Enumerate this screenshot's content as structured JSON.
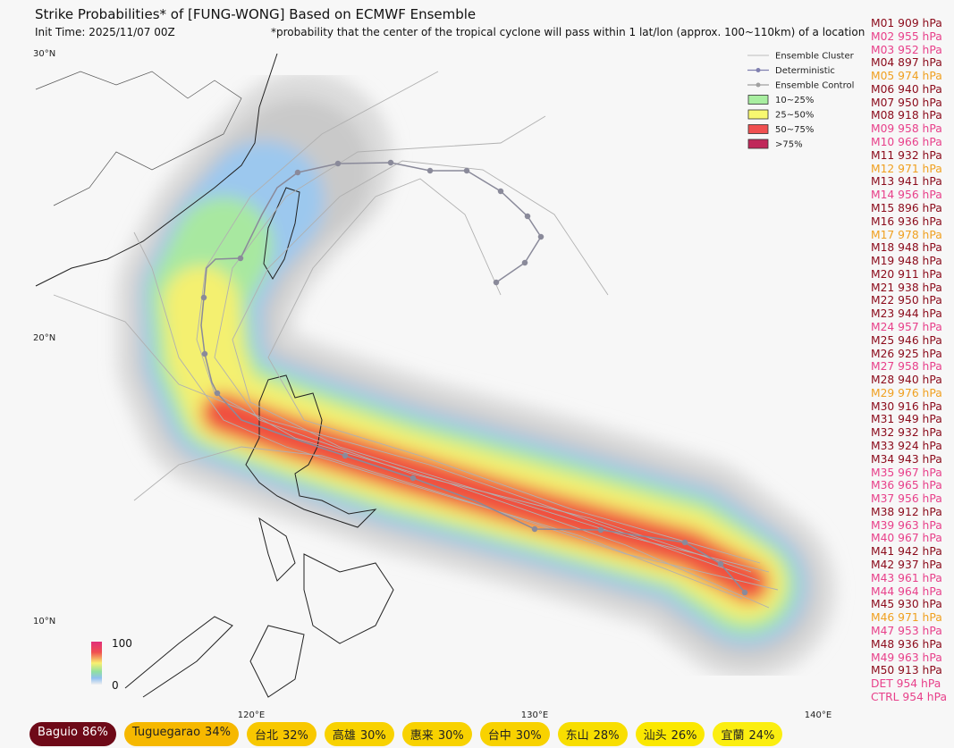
{
  "header": {
    "title": "Strike Probabilities* of [FUNG-WONG] Based on ECMWF Ensemble",
    "init_time": "Init Time: 2025/11/07 00Z",
    "footnote": "*probability that the center of the tropical cyclone will pass within 1 lat/lon (approx. 100~110km) of a location"
  },
  "map": {
    "lat_labels": [
      "30°N",
      "20°N",
      "10°N"
    ],
    "lon_labels": [
      "120°E",
      "130°E",
      "140°E"
    ]
  },
  "legend": {
    "lines": [
      {
        "label": "Ensemble Cluster",
        "color": "#c8c8c8"
      },
      {
        "label": "Deterministic",
        "color": "#8080b0"
      },
      {
        "label": "Ensemble Control",
        "color": "#a0a0a0"
      }
    ],
    "boxes": [
      {
        "label": "10~25%",
        "color": "#a8eea0"
      },
      {
        "label": "25~50%",
        "color": "#f8f870"
      },
      {
        "label": "50~75%",
        "color": "#f05050"
      },
      {
        "label": ">75%",
        "color": "#c0285a"
      }
    ]
  },
  "colorbar": {
    "max_label": "100",
    "min_label": "0"
  },
  "members": [
    {
      "text": "M01 909 hPa",
      "color": "#8b0a1a"
    },
    {
      "text": "M02 955 hPa",
      "color": "#e8408a"
    },
    {
      "text": "M03 952 hPa",
      "color": "#e8408a"
    },
    {
      "text": "M04 897 hPa",
      "color": "#8b0a1a"
    },
    {
      "text": "M05 974 hPa",
      "color": "#f0a020"
    },
    {
      "text": "M06 940 hPa",
      "color": "#8b0a1a"
    },
    {
      "text": "M07 950 hPa",
      "color": "#8b0a1a"
    },
    {
      "text": "M08 918 hPa",
      "color": "#8b0a1a"
    },
    {
      "text": "M09 958 hPa",
      "color": "#e8408a"
    },
    {
      "text": "M10 966 hPa",
      "color": "#e8408a"
    },
    {
      "text": "M11 932 hPa",
      "color": "#8b0a1a"
    },
    {
      "text": "M12 971 hPa",
      "color": "#f0a020"
    },
    {
      "text": "M13 941 hPa",
      "color": "#8b0a1a"
    },
    {
      "text": "M14 956 hPa",
      "color": "#e8408a"
    },
    {
      "text": "M15 896 hPa",
      "color": "#8b0a1a"
    },
    {
      "text": "M16 936 hPa",
      "color": "#8b0a1a"
    },
    {
      "text": "M17 978 hPa",
      "color": "#f0a020"
    },
    {
      "text": "M18 948 hPa",
      "color": "#8b0a1a"
    },
    {
      "text": "M19 948 hPa",
      "color": "#8b0a1a"
    },
    {
      "text": "M20 911 hPa",
      "color": "#8b0a1a"
    },
    {
      "text": "M21 938 hPa",
      "color": "#8b0a1a"
    },
    {
      "text": "M22 950 hPa",
      "color": "#8b0a1a"
    },
    {
      "text": "M23 944 hPa",
      "color": "#8b0a1a"
    },
    {
      "text": "M24 957 hPa",
      "color": "#e8408a"
    },
    {
      "text": "M25 946 hPa",
      "color": "#8b0a1a"
    },
    {
      "text": "M26 925 hPa",
      "color": "#8b0a1a"
    },
    {
      "text": "M27 958 hPa",
      "color": "#e8408a"
    },
    {
      "text": "M28 940 hPa",
      "color": "#8b0a1a"
    },
    {
      "text": "M29 976 hPa",
      "color": "#f0a020"
    },
    {
      "text": "M30 916 hPa",
      "color": "#8b0a1a"
    },
    {
      "text": "M31 949 hPa",
      "color": "#8b0a1a"
    },
    {
      "text": "M32 932 hPa",
      "color": "#8b0a1a"
    },
    {
      "text": "M33 924 hPa",
      "color": "#8b0a1a"
    },
    {
      "text": "M34 943 hPa",
      "color": "#8b0a1a"
    },
    {
      "text": "M35 967 hPa",
      "color": "#e8408a"
    },
    {
      "text": "M36 965 hPa",
      "color": "#e8408a"
    },
    {
      "text": "M37 956 hPa",
      "color": "#e8408a"
    },
    {
      "text": "M38 912 hPa",
      "color": "#8b0a1a"
    },
    {
      "text": "M39 963 hPa",
      "color": "#e8408a"
    },
    {
      "text": "M40 967 hPa",
      "color": "#e8408a"
    },
    {
      "text": "M41 942 hPa",
      "color": "#8b0a1a"
    },
    {
      "text": "M42 937 hPa",
      "color": "#8b0a1a"
    },
    {
      "text": "M43 961 hPa",
      "color": "#e8408a"
    },
    {
      "text": "M44 964 hPa",
      "color": "#e8408a"
    },
    {
      "text": "M45 930 hPa",
      "color": "#8b0a1a"
    },
    {
      "text": "M46 971 hPa",
      "color": "#f0a020"
    },
    {
      "text": "M47 953 hPa",
      "color": "#e8408a"
    },
    {
      "text": "M48 936 hPa",
      "color": "#8b0a1a"
    },
    {
      "text": "M49 963 hPa",
      "color": "#e8408a"
    },
    {
      "text": "M50 913 hPa",
      "color": "#8b0a1a"
    },
    {
      "text": "DET 954 hPa",
      "color": "#e8408a"
    },
    {
      "text": "CTRL 954 hPa",
      "color": "#e8408a"
    }
  ],
  "locations": [
    {
      "name": "Baguio",
      "prob": "86%",
      "color": "#6e0a18",
      "text_color": "#ffffff"
    },
    {
      "name": "Tuguegarao",
      "prob": "34%",
      "color": "#f6b800",
      "text_color": "#222222"
    },
    {
      "name": "台北",
      "prob": "32%",
      "color": "#f8c800",
      "text_color": "#222222"
    },
    {
      "name": "高雄",
      "prob": "30%",
      "color": "#f8d200",
      "text_color": "#222222"
    },
    {
      "name": "惠来",
      "prob": "30%",
      "color": "#f8d200",
      "text_color": "#222222"
    },
    {
      "name": "台中",
      "prob": "30%",
      "color": "#f8d200",
      "text_color": "#222222"
    },
    {
      "name": "东山",
      "prob": "28%",
      "color": "#f8de00",
      "text_color": "#222222"
    },
    {
      "name": "汕头",
      "prob": "26%",
      "color": "#fbe800",
      "text_color": "#222222"
    },
    {
      "name": "宜蘭",
      "prob": "24%",
      "color": "#fbee10",
      "text_color": "#222222"
    }
  ]
}
